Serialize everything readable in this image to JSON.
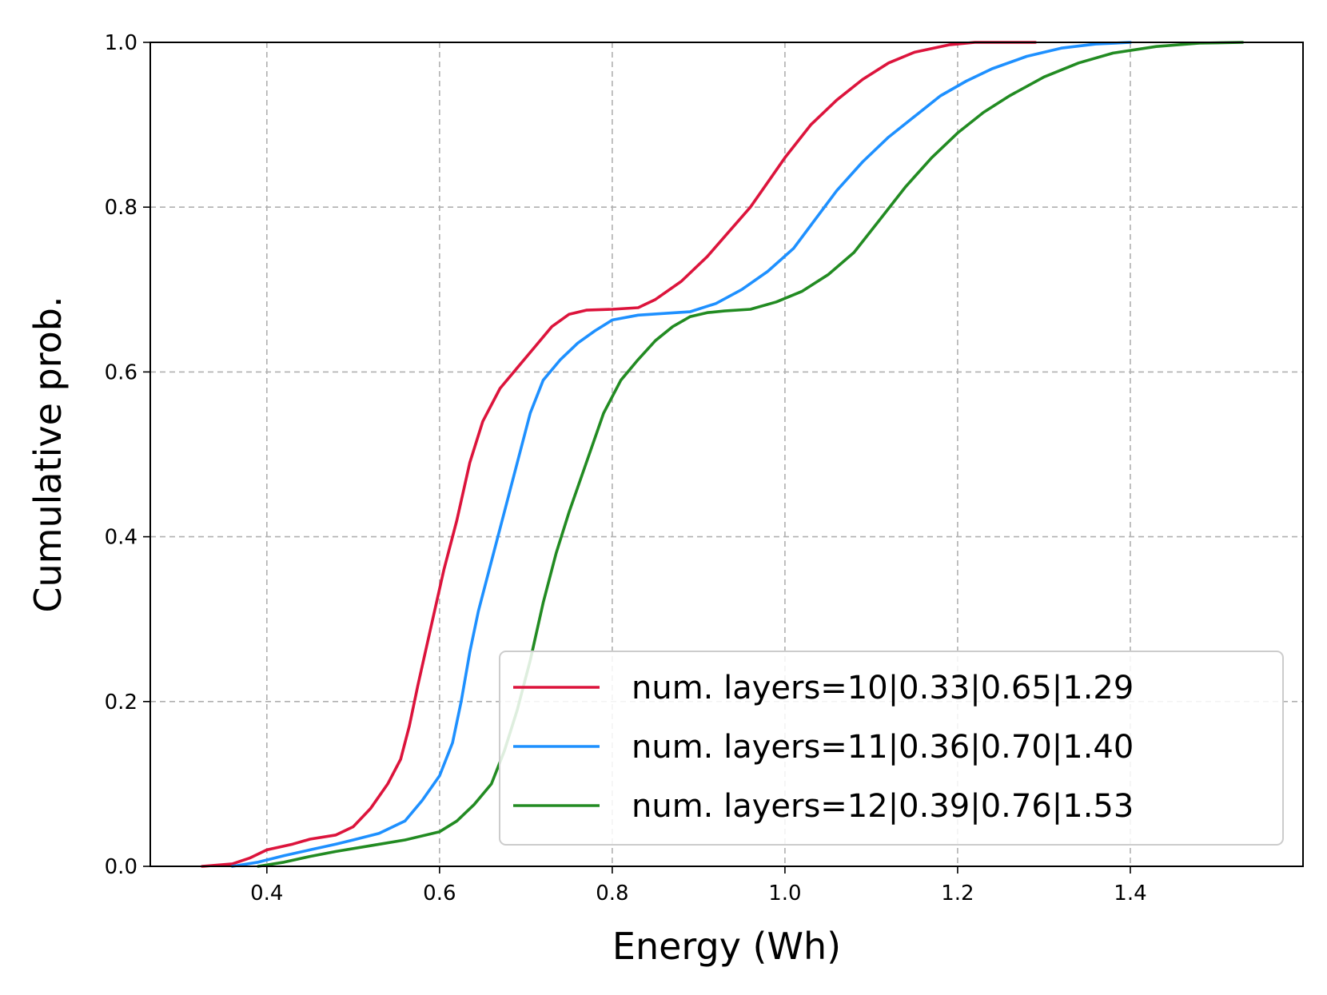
{
  "chart_data": {
    "type": "line",
    "title": "",
    "xlabel": "Energy (Wh)",
    "ylabel": "Cumulative prob.",
    "xlim": [
      0.265,
      1.6
    ],
    "ylim": [
      0.0,
      1.0
    ],
    "xticks": [
      "0.4",
      "0.6",
      "0.8",
      "1.0",
      "1.2",
      "1.4"
    ],
    "yticks": [
      "0.0",
      "0.2",
      "0.4",
      "0.6",
      "0.8",
      "1.0"
    ],
    "grid": true,
    "legend_position": "bottom-right",
    "series": [
      {
        "name": "num. layers=10|0.33|0.65|1.29",
        "color": "#dc143c",
        "points": [
          [
            0.325,
            0.0
          ],
          [
            0.36,
            0.003
          ],
          [
            0.38,
            0.01
          ],
          [
            0.4,
            0.02
          ],
          [
            0.43,
            0.027
          ],
          [
            0.45,
            0.033
          ],
          [
            0.48,
            0.038
          ],
          [
            0.5,
            0.048
          ],
          [
            0.52,
            0.07
          ],
          [
            0.54,
            0.1
          ],
          [
            0.555,
            0.13
          ],
          [
            0.565,
            0.17
          ],
          [
            0.575,
            0.22
          ],
          [
            0.59,
            0.29
          ],
          [
            0.605,
            0.36
          ],
          [
            0.62,
            0.42
          ],
          [
            0.635,
            0.49
          ],
          [
            0.65,
            0.54
          ],
          [
            0.67,
            0.58
          ],
          [
            0.69,
            0.605
          ],
          [
            0.71,
            0.63
          ],
          [
            0.73,
            0.655
          ],
          [
            0.75,
            0.67
          ],
          [
            0.77,
            0.675
          ],
          [
            0.8,
            0.676
          ],
          [
            0.83,
            0.678
          ],
          [
            0.85,
            0.688
          ],
          [
            0.88,
            0.71
          ],
          [
            0.91,
            0.74
          ],
          [
            0.935,
            0.77
          ],
          [
            0.96,
            0.8
          ],
          [
            0.98,
            0.83
          ],
          [
            1.0,
            0.86
          ],
          [
            1.03,
            0.9
          ],
          [
            1.06,
            0.93
          ],
          [
            1.09,
            0.955
          ],
          [
            1.12,
            0.975
          ],
          [
            1.15,
            0.988
          ],
          [
            1.19,
            0.997
          ],
          [
            1.22,
            1.0
          ],
          [
            1.29,
            1.0
          ]
        ]
      },
      {
        "name": "num. layers=11|0.36|0.70|1.40",
        "color": "#1e90ff",
        "points": [
          [
            0.36,
            0.0
          ],
          [
            0.39,
            0.005
          ],
          [
            0.42,
            0.013
          ],
          [
            0.45,
            0.02
          ],
          [
            0.48,
            0.027
          ],
          [
            0.5,
            0.032
          ],
          [
            0.53,
            0.04
          ],
          [
            0.56,
            0.055
          ],
          [
            0.58,
            0.08
          ],
          [
            0.6,
            0.11
          ],
          [
            0.615,
            0.15
          ],
          [
            0.625,
            0.2
          ],
          [
            0.635,
            0.26
          ],
          [
            0.645,
            0.31
          ],
          [
            0.66,
            0.37
          ],
          [
            0.675,
            0.43
          ],
          [
            0.69,
            0.49
          ],
          [
            0.705,
            0.55
          ],
          [
            0.72,
            0.59
          ],
          [
            0.74,
            0.615
          ],
          [
            0.76,
            0.635
          ],
          [
            0.78,
            0.65
          ],
          [
            0.8,
            0.663
          ],
          [
            0.83,
            0.669
          ],
          [
            0.86,
            0.671
          ],
          [
            0.89,
            0.673
          ],
          [
            0.92,
            0.683
          ],
          [
            0.95,
            0.7
          ],
          [
            0.98,
            0.722
          ],
          [
            1.01,
            0.75
          ],
          [
            1.035,
            0.785
          ],
          [
            1.06,
            0.82
          ],
          [
            1.09,
            0.855
          ],
          [
            1.12,
            0.885
          ],
          [
            1.15,
            0.91
          ],
          [
            1.18,
            0.935
          ],
          [
            1.21,
            0.953
          ],
          [
            1.24,
            0.968
          ],
          [
            1.28,
            0.983
          ],
          [
            1.32,
            0.993
          ],
          [
            1.36,
            0.998
          ],
          [
            1.4,
            1.0
          ]
        ]
      },
      {
        "name": "num. layers=12|0.39|0.76|1.53",
        "color": "#228b22",
        "points": [
          [
            0.39,
            0.0
          ],
          [
            0.42,
            0.005
          ],
          [
            0.45,
            0.012
          ],
          [
            0.48,
            0.018
          ],
          [
            0.52,
            0.025
          ],
          [
            0.56,
            0.032
          ],
          [
            0.6,
            0.042
          ],
          [
            0.62,
            0.055
          ],
          [
            0.64,
            0.075
          ],
          [
            0.66,
            0.1
          ],
          [
            0.675,
            0.14
          ],
          [
            0.69,
            0.19
          ],
          [
            0.705,
            0.25
          ],
          [
            0.72,
            0.32
          ],
          [
            0.735,
            0.38
          ],
          [
            0.75,
            0.43
          ],
          [
            0.77,
            0.49
          ],
          [
            0.79,
            0.55
          ],
          [
            0.81,
            0.59
          ],
          [
            0.83,
            0.615
          ],
          [
            0.85,
            0.638
          ],
          [
            0.87,
            0.655
          ],
          [
            0.89,
            0.667
          ],
          [
            0.91,
            0.672
          ],
          [
            0.93,
            0.674
          ],
          [
            0.96,
            0.676
          ],
          [
            0.99,
            0.685
          ],
          [
            1.02,
            0.698
          ],
          [
            1.05,
            0.718
          ],
          [
            1.08,
            0.745
          ],
          [
            1.11,
            0.785
          ],
          [
            1.14,
            0.825
          ],
          [
            1.17,
            0.86
          ],
          [
            1.2,
            0.89
          ],
          [
            1.23,
            0.915
          ],
          [
            1.26,
            0.935
          ],
          [
            1.3,
            0.958
          ],
          [
            1.34,
            0.975
          ],
          [
            1.38,
            0.987
          ],
          [
            1.43,
            0.995
          ],
          [
            1.48,
            0.999
          ],
          [
            1.53,
            1.0
          ]
        ]
      }
    ]
  }
}
